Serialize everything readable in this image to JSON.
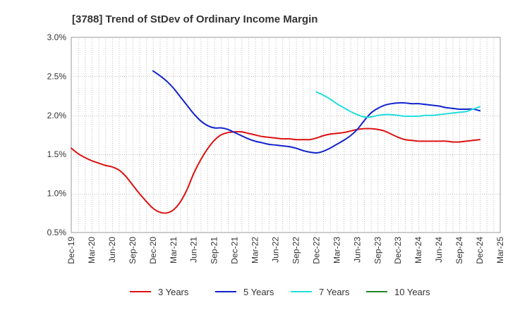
{
  "chart_data": {
    "type": "line",
    "title": "[3788]  Trend of StDev of Ordinary Income Margin",
    "xlabel": "",
    "ylabel": "",
    "x_ticks": [
      "Dec-19",
      "Mar-20",
      "Jun-20",
      "Sep-20",
      "Dec-20",
      "Mar-21",
      "Jun-21",
      "Sep-21",
      "Dec-21",
      "Mar-22",
      "Jun-22",
      "Sep-22",
      "Dec-22",
      "Mar-23",
      "Jun-23",
      "Sep-23",
      "Dec-23",
      "Mar-24",
      "Jun-24",
      "Sep-24",
      "Dec-24",
      "Mar-25"
    ],
    "y_ticks": [
      "0.5%",
      "1.0%",
      "1.5%",
      "2.0%",
      "2.5%",
      "3.0%"
    ],
    "y_tick_values": [
      0.5,
      1.0,
      1.5,
      2.0,
      2.5,
      3.0
    ],
    "ylim": [
      0.5,
      3.0
    ],
    "grid": true,
    "legend_position": "bottom",
    "series": [
      {
        "name": "3 Years",
        "color": "#dd1111",
        "x": [
          "Dec-19",
          "Jan-20",
          "Feb-20",
          "Mar-20",
          "Apr-20",
          "May-20",
          "Jun-20",
          "Jul-20",
          "Aug-20",
          "Sep-20",
          "Oct-20",
          "Nov-20",
          "Dec-20",
          "Jan-21",
          "Feb-21",
          "Mar-21",
          "Apr-21",
          "May-21",
          "Jun-21",
          "Jul-21",
          "Aug-21",
          "Sep-21",
          "Oct-21",
          "Nov-21",
          "Dec-21",
          "Jan-22",
          "Feb-22",
          "Mar-22",
          "Apr-22",
          "May-22",
          "Jun-22",
          "Jul-22",
          "Aug-22",
          "Sep-22",
          "Oct-22",
          "Nov-22",
          "Dec-22",
          "Jan-23",
          "Feb-23",
          "Mar-23",
          "Apr-23",
          "May-23",
          "Jun-23",
          "Jul-23",
          "Aug-23",
          "Sep-23",
          "Oct-23",
          "Nov-23",
          "Dec-23",
          "Jan-24",
          "Feb-24",
          "Mar-24",
          "Apr-24",
          "May-24",
          "Jun-24",
          "Jul-24",
          "Aug-24",
          "Sep-24",
          "Oct-24",
          "Nov-24",
          "Dec-24"
        ],
        "values": [
          1.58,
          1.51,
          1.46,
          1.42,
          1.39,
          1.36,
          1.34,
          1.3,
          1.22,
          1.11,
          1.0,
          0.9,
          0.81,
          0.76,
          0.75,
          0.79,
          0.89,
          1.05,
          1.26,
          1.43,
          1.57,
          1.68,
          1.75,
          1.78,
          1.79,
          1.79,
          1.77,
          1.75,
          1.73,
          1.72,
          1.71,
          1.7,
          1.7,
          1.69,
          1.69,
          1.69,
          1.71,
          1.74,
          1.76,
          1.77,
          1.78,
          1.8,
          1.82,
          1.83,
          1.83,
          1.82,
          1.8,
          1.76,
          1.72,
          1.69,
          1.68,
          1.67,
          1.67,
          1.67,
          1.67,
          1.67,
          1.66,
          1.66,
          1.67,
          1.68,
          1.69
        ]
      },
      {
        "name": "5 Years",
        "color": "#1122cc",
        "x": [
          "Dec-20",
          "Jan-21",
          "Feb-21",
          "Mar-21",
          "Apr-21",
          "May-21",
          "Jun-21",
          "Jul-21",
          "Aug-21",
          "Sep-21",
          "Oct-21",
          "Nov-21",
          "Dec-21",
          "Jan-22",
          "Feb-22",
          "Mar-22",
          "Apr-22",
          "May-22",
          "Jun-22",
          "Jul-22",
          "Aug-22",
          "Sep-22",
          "Oct-22",
          "Nov-22",
          "Dec-22",
          "Jan-23",
          "Feb-23",
          "Mar-23",
          "Apr-23",
          "May-23",
          "Jun-23",
          "Jul-23",
          "Aug-23",
          "Sep-23",
          "Oct-23",
          "Nov-23",
          "Dec-23",
          "Jan-24",
          "Feb-24",
          "Mar-24",
          "Apr-24",
          "May-24",
          "Jun-24",
          "Jul-24",
          "Aug-24",
          "Sep-24",
          "Oct-24",
          "Nov-24",
          "Dec-24"
        ],
        "values": [
          2.57,
          2.51,
          2.44,
          2.35,
          2.24,
          2.13,
          2.02,
          1.93,
          1.87,
          1.84,
          1.84,
          1.82,
          1.78,
          1.74,
          1.7,
          1.67,
          1.65,
          1.63,
          1.62,
          1.61,
          1.6,
          1.58,
          1.55,
          1.53,
          1.52,
          1.54,
          1.58,
          1.63,
          1.68,
          1.74,
          1.82,
          1.93,
          2.03,
          2.09,
          2.13,
          2.15,
          2.16,
          2.16,
          2.15,
          2.15,
          2.14,
          2.13,
          2.12,
          2.1,
          2.09,
          2.08,
          2.08,
          2.08,
          2.06
        ]
      },
      {
        "name": "7 Years",
        "color": "#22dddd",
        "x": [
          "Dec-22",
          "Jan-23",
          "Feb-23",
          "Mar-23",
          "Apr-23",
          "May-23",
          "Jun-23",
          "Jul-23",
          "Aug-23",
          "Sep-23",
          "Oct-23",
          "Nov-23",
          "Dec-23",
          "Jan-24",
          "Feb-24",
          "Mar-24",
          "Apr-24",
          "May-24",
          "Jun-24",
          "Jul-24",
          "Aug-24",
          "Sep-24",
          "Oct-24",
          "Nov-24",
          "Dec-24"
        ],
        "values": [
          2.3,
          2.26,
          2.21,
          2.15,
          2.1,
          2.05,
          2.01,
          1.98,
          1.98,
          2.0,
          2.01,
          2.01,
          2.0,
          1.99,
          1.99,
          1.99,
          2.0,
          2.0,
          2.01,
          2.02,
          2.03,
          2.04,
          2.05,
          2.08,
          2.11
        ]
      },
      {
        "name": "10 Years",
        "color": "#228822",
        "x": [],
        "values": []
      }
    ]
  }
}
